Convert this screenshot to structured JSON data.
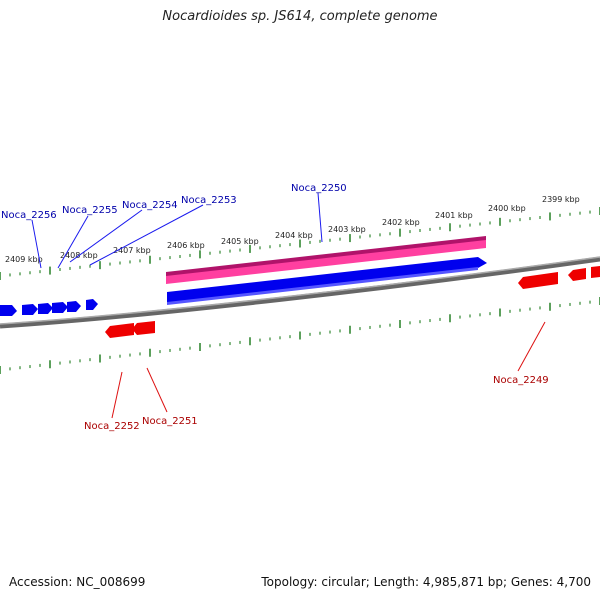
{
  "title": "Nocardioides sp. JS614, complete genome",
  "footer": {
    "accession": "Accession: NC_008699",
    "summary": "Topology: circular; Length: 4,985,871 bp; Genes: 4,700"
  },
  "colors": {
    "background": "#ffffff",
    "forward_gene": "#0000ee",
    "reverse_gene": "#ee0000",
    "rrna_feature": "#ff3399",
    "backbone": "#777777",
    "ticks": "#338833",
    "forward_label": "#0000aa",
    "reverse_label": "#aa0000"
  },
  "scale_labels": [
    "2409 kbp",
    "2408 kbp",
    "2407 kbp",
    "2406 kbp",
    "2405 kbp",
    "2404 kbp",
    "2403 kbp",
    "2402 kbp",
    "2401 kbp",
    "2400 kbp",
    "2399 kbp"
  ],
  "forward_gene_labels": [
    "Noca_2256",
    "Noca_2255",
    "Noca_2254",
    "Noca_2253",
    "Noca_2250"
  ],
  "reverse_gene_labels": [
    "Noca_2252",
    "Noca_2251",
    "Noca_2249"
  ]
}
